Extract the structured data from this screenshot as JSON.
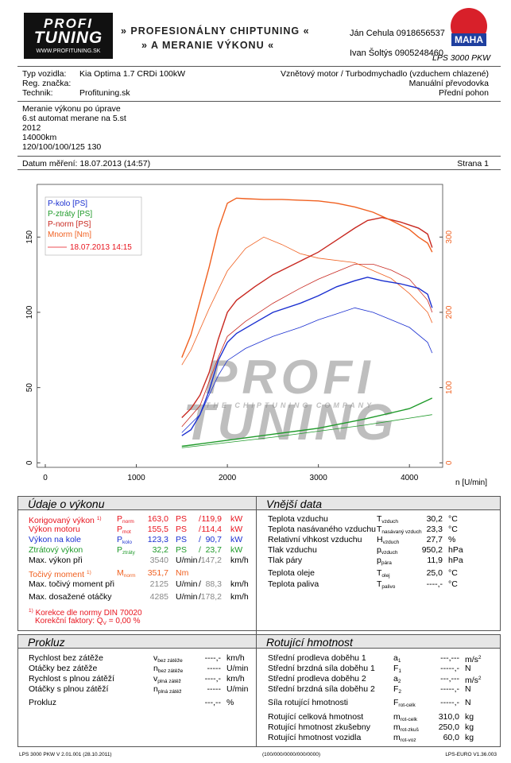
{
  "header": {
    "logo_top": "PROFI",
    "logo_bottom": "TUNING",
    "logo_url": "WWW.PROFITUNING.SK",
    "tagline_1": "» PROFESIONÁLNY CHIPTUNING «",
    "tagline_2": "» A MERANIE VÝKONU «",
    "contact_1": "Ján Cehula 0918656537",
    "contact_2": "Ivan Šoltýs 0905248460",
    "device": "LPS 3000 PKW",
    "brand": "MAHA"
  },
  "vehicle": {
    "left": [
      [
        "Typ vozidla:",
        "Kia Optima 1.7 CRDi 100kW"
      ],
      [
        "Reg. značka:"
      ],
      [
        "Technik:",
        "Profituning.sk"
      ]
    ],
    "right": [
      "Vznětový motor / Turbodmychadlo (vzduchem chlazené)",
      "Manuální převodovka",
      "Přední pohon"
    ]
  },
  "notes": [
    "Meranie výkonu po úprave",
    "6.st automat merane na 5.st",
    "2012",
    "14000km",
    "120/100/100/125 130"
  ],
  "date": "Datum měření: 18.07.2013 (14:57)",
  "page_no": "Strana 1",
  "chart_data": {
    "type": "line",
    "xlim": [
      -90,
      4365
    ],
    "xticks": [
      0,
      1000,
      2000,
      3000,
      4000
    ],
    "xlabel": "n [U/min]",
    "ylim": [
      -3,
      185
    ],
    "yticks": [
      0,
      50,
      100,
      150
    ],
    "y2lim": [
      -6,
      370
    ],
    "y2ticks": [
      0,
      100,
      200,
      300
    ],
    "y2color": "#f06020",
    "watermark": [
      "PROFI",
      "THE CHIPTUNING COMPANY",
      "TUNING"
    ],
    "series": [
      {
        "name": "P-kolo [PS]",
        "color": "#1a2fd0",
        "x": [
          1500,
          1600,
          1700,
          1800,
          1900,
          2000,
          2100,
          2300,
          2500,
          2800,
          3000,
          3200,
          3400,
          3540,
          3700,
          3900,
          4100,
          4200,
          4250
        ],
        "values": [
          18,
          22,
          32,
          48,
          68,
          80,
          86,
          93,
          100,
          106,
          111,
          117,
          121,
          123.3,
          121,
          119,
          116,
          112,
          103
        ]
      },
      {
        "name": "P-ztráty [PS]",
        "color": "#1f9a2a",
        "x": [
          1500,
          2000,
          2500,
          3000,
          3500,
          4000,
          4250
        ],
        "values": [
          11,
          15,
          19,
          23,
          29,
          36,
          43
        ]
      },
      {
        "name": "P-norm [PS]",
        "color": "#c82820",
        "x": [
          1500,
          1600,
          1700,
          1800,
          1900,
          2000,
          2100,
          2300,
          2500,
          2800,
          3000,
          3200,
          3400,
          3540,
          3700,
          3900,
          4100,
          4200,
          4250
        ],
        "values": [
          30,
          36,
          45,
          60,
          82,
          100,
          108,
          117,
          125,
          134,
          140,
          148,
          156,
          161,
          163,
          160,
          156,
          152,
          143
        ]
      },
      {
        "name": "Mnorm [Nm]",
        "color": "#f06020",
        "axis": "y2",
        "x": [
          1500,
          1600,
          1700,
          1800,
          1900,
          2000,
          2100,
          2200,
          2400,
          2600,
          2800,
          3000,
          3200,
          3400,
          3600,
          3800,
          4000,
          4100,
          4200,
          4250
        ],
        "values": [
          140,
          170,
          215,
          260,
          310,
          345,
          351.7,
          351,
          350,
          350,
          349,
          348,
          345,
          340,
          333,
          322,
          310,
          300,
          292,
          280
        ]
      }
    ],
    "comparison": {
      "label": "18.07.2013 14:15",
      "color": "#e8141e",
      "series": [
        {
          "color": "#1a2fd0",
          "x": [
            1500,
            1700,
            1900,
            2000,
            2200,
            2500,
            2800,
            3000,
            3200,
            3400,
            3600,
            3800,
            4000,
            4200,
            4250
          ],
          "values": [
            20,
            32,
            58,
            68,
            76,
            84,
            90,
            95,
            99,
            103,
            100,
            95,
            90,
            80,
            73
          ]
        },
        {
          "color": "#1f9a2a",
          "x": [
            1500,
            2500,
            3500,
            4250
          ],
          "values": [
            10,
            17,
            25,
            32
          ]
        },
        {
          "color": "#c82820",
          "x": [
            1500,
            1700,
            1900,
            2000,
            2200,
            2500,
            2800,
            3000,
            3200,
            3400,
            3600,
            3800,
            4000,
            4200,
            4250
          ],
          "values": [
            24,
            38,
            70,
            84,
            94,
            106,
            116,
            122,
            127,
            132,
            132,
            128,
            122,
            108,
            100
          ]
        },
        {
          "color": "#f06020",
          "axis": "y2",
          "x": [
            1500,
            1600,
            1800,
            2000,
            2200,
            2400,
            2600,
            2800,
            3000,
            3400,
            3800,
            4000,
            4200,
            4250
          ],
          "values": [
            130,
            150,
            205,
            255,
            285,
            300,
            290,
            278,
            272,
            266,
            245,
            225,
            200,
            186
          ]
        }
      ]
    }
  },
  "performance": {
    "title": "Údaje o výkonu",
    "rows": [
      {
        "label": "Korigovaný výkon",
        "label_sup": "1)",
        "sym": "P",
        "sub": "norm",
        "v1": "163,0",
        "u1": "PS",
        "sep": "/",
        "v2": "119,9",
        "u2": "kW",
        "color": "#e8141e"
      },
      {
        "label": "Výkon motoru",
        "sym": "P",
        "sub": "mot",
        "v1": "155,5",
        "u1": "PS",
        "sep": "/",
        "v2": "114,4",
        "u2": "kW",
        "color": "#e8141e"
      },
      {
        "label": "Výkon na kole",
        "sym": "P",
        "sub": "kolo",
        "v1": "123,3",
        "u1": "PS",
        "sep": "/",
        "v2": "90,7",
        "u2": "kW",
        "color": "#1a2fd0"
      },
      {
        "label": "Ztrátový výkon",
        "sym": "P",
        "sub": "ztráty",
        "v1": "32,2",
        "u1": "PS",
        "sep": "/",
        "v2": "23,7",
        "u2": "kW",
        "color": "#1f9a2a"
      },
      {
        "label": "Max. výkon při",
        "v1": "3540",
        "u1": "U/min",
        "sep": "/",
        "v2": "147,2",
        "u2": "km/h",
        "value_color": "#888888"
      },
      {
        "label": "Točivý moment",
        "label_sup": "1)",
        "sym": "M",
        "sub": "norm",
        "v1": "351,7",
        "u1": "Nm",
        "color": "#f06020"
      },
      {
        "label": "Max. točivý moment při",
        "v1": "2125",
        "u1": "U/min",
        "sep": "/",
        "v2": "88,3",
        "u2": "km/h",
        "value_color": "#888888"
      },
      {
        "label": "Max. dosažené otáčky",
        "v1": "4285",
        "u1": "U/min",
        "sep": "/",
        "v2": "178,2",
        "u2": "km/h",
        "value_color": "#888888"
      }
    ],
    "footnote_mark": "1)",
    "footnote": "Korekce dle normy DIN 70020",
    "factor_label": "Korekční faktory: Q",
    "factor_sub": "V",
    "factor_value": "=   0,00 %"
  },
  "external": {
    "title": "Vnější data",
    "rows": [
      {
        "label": "Teplota vzduchu",
        "sym": "T",
        "sub": "vzduch",
        "v1": "30,2",
        "u1": "°C"
      },
      {
        "label": "Teplota nasávaného vzduchu",
        "sym": "T",
        "sub": "nasávaný vzduch",
        "v1": "23,3",
        "u1": "°C"
      },
      {
        "label": "Relativní vlhkost vzduchu",
        "sym": "H",
        "sub": "vzduch",
        "v1": "27,7",
        "u1": "%"
      },
      {
        "label": "Tlak vzduchu",
        "sym": "p",
        "sub": "vzduch",
        "v1": "950,2",
        "u1": "hPa"
      },
      {
        "label": "Tlak páry",
        "sym": "p",
        "sub": "pára",
        "v1": "11,9",
        "u1": "hPa"
      },
      {
        "label": "Teplota oleje",
        "sym": "T",
        "sub": "olej",
        "v1": "25,0",
        "u1": "°C"
      },
      {
        "label": "Teplota paliva",
        "sym": "T",
        "sub": "palivo",
        "v1": "----,-",
        "u1": "°C"
      }
    ]
  },
  "slip": {
    "title": "Prokluz",
    "rows": [
      {
        "label": "Rychlost bez zátěže",
        "sym": "v",
        "sub": "bez zátěže",
        "v1": "----,-",
        "u1": "km/h"
      },
      {
        "label": "Otáčky bez zátěže",
        "sym": "n",
        "sub": "bez zátěže",
        "v1": "-----",
        "u1": "U/min"
      },
      {
        "label": "Rychlost s plnou zátěží",
        "sym": "v",
        "sub": "plná zátěž",
        "v1": "----,-",
        "u1": "km/h"
      },
      {
        "label": "Otáčky s plnou zátěží",
        "sym": "n",
        "sub": "plná zátěž",
        "v1": "-----",
        "u1": "U/min"
      },
      {
        "label": "Prokluz",
        "v1": "---,--",
        "u1": "%"
      }
    ]
  },
  "rotating": {
    "title": "Rotující hmotnost",
    "rows": [
      {
        "label": "Střední prodleva doběhu 1",
        "sym": "a",
        "sub": "1",
        "v1": "---,---",
        "u1": "m/s",
        "u1_sup": "2"
      },
      {
        "label": "Střední brzdná síla doběhu 1",
        "sym": "F",
        "sub": "1",
        "v1": "-----,-",
        "u1": "N"
      },
      {
        "label": "Střední prodleva doběhu 2",
        "sym": "a",
        "sub": "2",
        "v1": "---,---",
        "u1": "m/s",
        "u1_sup": "2"
      },
      {
        "label": "Střední brzdná síla doběhu 2",
        "sym": "F",
        "sub": "2",
        "v1": "-----,-",
        "u1": "N"
      },
      {
        "label": "Síla rotující hmotnosti",
        "sym": "F",
        "sub": "rot-celk",
        "v1": "-----,-",
        "u1": "N"
      },
      {
        "label": "Rotující celková hmotnost",
        "sym": "m",
        "sub": "rot-celk",
        "v1": "310,0",
        "u1": "kg"
      },
      {
        "label": "Rotující hmotnost zkušebny",
        "sym": "m",
        "sub": "rot-zkuš",
        "v1": "250,0",
        "u1": "kg"
      },
      {
        "label": "Rotující hmotnost vozidla",
        "sym": "m",
        "sub": "rot-voz",
        "v1": "60,0",
        "u1": "kg"
      }
    ]
  },
  "footer": [
    "LPS 3000 PKW V 2.01.001 (28.10.2011)",
    "(100/000/0000/000/0000)",
    "LPS-EURO V1.36.003"
  ]
}
